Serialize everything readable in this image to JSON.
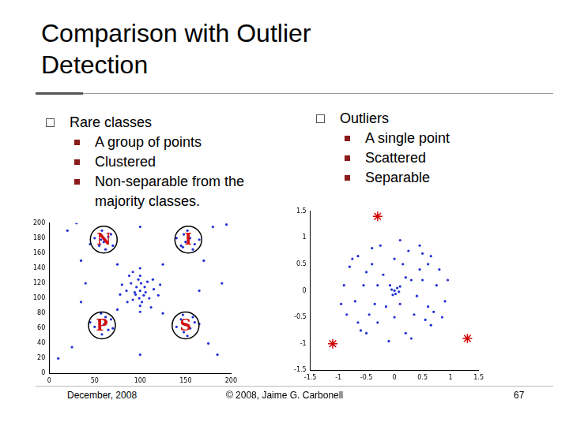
{
  "slide": {
    "title": "Comparison with Outlier Detection",
    "columns": [
      {
        "heading": "Rare classes",
        "items": [
          "A group of points",
          "Clustered",
          "Non-separable from the majority classes."
        ]
      },
      {
        "heading": "Outliers",
        "items": [
          "A single point",
          "Scattered",
          "Separable"
        ]
      }
    ],
    "footer": {
      "date": "December, 2008",
      "copyright": "© 2008, Jaime G. Carbonell",
      "page": "67"
    }
  },
  "chart_data": [
    {
      "type": "scatter",
      "grid": false,
      "xlim": [
        0,
        200
      ],
      "ylim": [
        0,
        200
      ],
      "xticks": [
        0,
        50,
        100,
        150,
        200
      ],
      "yticks": [
        0,
        20,
        40,
        60,
        80,
        100,
        120,
        140,
        160,
        180,
        200
      ],
      "series": [
        {
          "color": "#1f2fd6",
          "marker": "circle",
          "x": [
            100,
            95,
            105,
            90,
            110,
            98,
            102,
            85,
            115,
            92,
            108,
            100,
            100,
            80,
            120,
            88,
            112,
            96,
            104,
            94,
            106,
            99,
            101,
            86,
            114,
            78,
            122,
            100,
            100,
            92,
            60,
            55,
            65,
            50,
            70,
            58,
            62,
            45,
            68,
            57,
            150,
            155,
            145,
            160,
            148,
            158,
            140,
            152,
            165,
            147,
            60,
            55,
            65,
            50,
            68,
            58,
            62,
            45,
            70,
            57,
            150,
            155,
            145,
            160,
            148,
            158,
            140,
            152,
            165,
            147,
            30,
            20,
            180,
            195,
            10,
            25,
            185,
            175,
            75,
            125,
            75,
            125,
            40,
            165,
            100,
            100,
            35,
            170,
            35,
            190
          ],
          "values": [
            110,
            105,
            115,
            120,
            100,
            125,
            95,
            110,
            112,
            98,
            122,
            130,
            90,
            118,
            104,
            130,
            88,
            115,
            104,
            108,
            108,
            100,
            120,
            95,
            125,
            105,
            118,
            140,
            82,
            135,
            175,
            170,
            182,
            180,
            170,
            190,
            165,
            172,
            185,
            178,
            175,
            180,
            170,
            172,
            185,
            165,
            180,
            190,
            178,
            168,
            65,
            70,
            58,
            62,
            72,
            52,
            75,
            68,
            60,
            80,
            65,
            60,
            72,
            68,
            55,
            75,
            62,
            50,
            66,
            78,
            200,
            190,
            195,
            198,
            20,
            35,
            25,
            40,
            145,
            145,
            85,
            80,
            120,
            110,
            195,
            25,
            150,
            150,
            95,
            120
          ]
        }
      ],
      "annotations": [
        {
          "text": "N",
          "x": 60,
          "y": 178
        },
        {
          "text": "I",
          "x": 153,
          "y": 178
        },
        {
          "text": "P",
          "x": 58,
          "y": 64
        },
        {
          "text": "S",
          "x": 150,
          "y": 64
        }
      ]
    },
    {
      "type": "scatter",
      "grid": false,
      "xlim": [
        -1.5,
        1.5
      ],
      "ylim": [
        -1.5,
        1.5
      ],
      "xticks": [
        -1.5,
        -1,
        -0.5,
        0,
        0.5,
        1,
        1.5
      ],
      "yticks": [
        -1.5,
        -1,
        -0.5,
        0,
        0.5,
        1,
        1.5
      ],
      "series": [
        {
          "color": "#1f2fd6",
          "marker": "circle",
          "x": [
            0,
            0.05,
            -0.05,
            0.02,
            0.08,
            -0.03,
            0.1,
            -0.08,
            0.3,
            -0.4,
            0.6,
            -0.7,
            0.2,
            -0.3,
            0.8,
            -0.9,
            0.5,
            -0.5,
            0.9,
            0.1,
            -0.1,
            0.65,
            -0.65,
            0.65,
            -0.65,
            0.4,
            -0.2,
            0.15,
            -0.55,
            0.35,
            -0.35,
            0.75,
            -0.8,
            0.25,
            -0.25,
            0.45,
            -0.45,
            0.55,
            0,
            0,
            0.95,
            -0.95,
            0.3,
            -0.6,
            0.85,
            -0.15,
            0.2,
            -0.75,
            0.5,
            -0.3,
            0.1,
            0.7,
            -0.4,
            0.45,
            -0.85,
            0.6,
            -0.5
          ],
          "values": [
            0,
            0.05,
            0.02,
            -0.06,
            -0.02,
            -0.08,
            0.08,
            0.1,
            0.2,
            0.5,
            -0.3,
            -0.2,
            -0.8,
            -0.6,
            0.4,
            0.1,
            0.7,
            -0.8,
            -0.2,
            0.95,
            -0.95,
            0.65,
            0.65,
            -0.65,
            -0.6,
            -0.1,
            0.3,
            0.5,
            0.1,
            -0.45,
            -0.25,
            0.1,
            0.45,
            0.75,
            0.85,
            0.4,
            -0.45,
            -0.55,
            -0.5,
            0.6,
            0.2,
            -0.25,
            -0.9,
            -0.75,
            -0.5,
            -0.3,
            0.25,
            0.6,
            0.2,
            0.1,
            -0.25,
            -0.4,
            0.8,
            0.85,
            -0.45,
            0.5,
            0.35
          ]
        },
        {
          "color": "#d00000",
          "marker": "star",
          "x": [
            -0.3,
            -1.1,
            1.3
          ],
          "values": [
            1.4,
            -1.0,
            -0.9
          ]
        }
      ]
    }
  ]
}
